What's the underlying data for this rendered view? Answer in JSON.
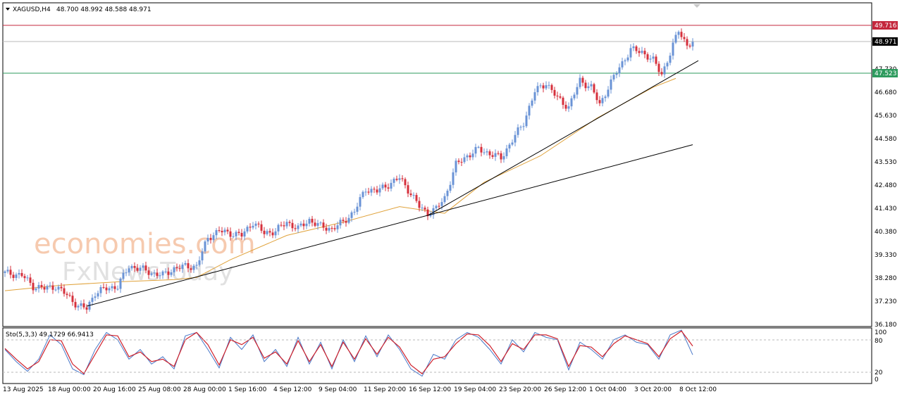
{
  "header": {
    "symbol": "XAGUSD,H4",
    "ohlc": "48.700 48.992 48.588 48.971",
    "collapse_icon": "triangle-down-icon"
  },
  "watermark": {
    "line1": "economies.com",
    "line2": "FxNewsToday"
  },
  "price_axis": {
    "ticks": [
      "49.716",
      "48.971",
      "47.730",
      "47.523",
      "46.680",
      "45.630",
      "44.580",
      "43.530",
      "42.480",
      "41.430",
      "40.380",
      "39.330",
      "38.280",
      "37.230",
      "36.180"
    ]
  },
  "levels": {
    "resistance": {
      "label": "49.716",
      "value": 49.716,
      "color": "#c4273c"
    },
    "current": {
      "label": "48.971",
      "value": 48.971,
      "color": "#000000"
    },
    "support": {
      "label": "47.523",
      "value": 47.523,
      "color": "#2e9b5e"
    }
  },
  "time_axis": {
    "labels": [
      "13 Aug 2025",
      "18 Aug 00:00",
      "20 Aug 16:00",
      "25 Aug 08:00",
      "28 Aug 00:00",
      "1 Sep 16:00",
      "4 Sep 12:00",
      "9 Sep 04:00",
      "11 Sep 20:00",
      "16 Sep 12:00",
      "19 Sep 04:00",
      "23 Sep 20:00",
      "26 Sep 12:00",
      "1 Oct 04:00",
      "3 Oct 20:00",
      "8 Oct 12:00"
    ]
  },
  "stochastic": {
    "label": "Sto(5,3,3) 49.1729 66.9413",
    "levels": [
      "100",
      "80",
      "20",
      "0"
    ],
    "main_color": "#4a78c8",
    "signal_color": "#d0222c"
  },
  "chart_data": {
    "type": "candlestick",
    "symbol": "XAGUSD",
    "timeframe": "H4",
    "ylim": [
      36.18,
      50.24
    ],
    "bull_color": "#6a93d6",
    "bear_color": "#d6303c",
    "ma_color": "#e0a23a",
    "close_path": [
      [
        0,
        38.6
      ],
      [
        6,
        38.5
      ],
      [
        10,
        38.0
      ],
      [
        14,
        37.9
      ],
      [
        18,
        38.0
      ],
      [
        22,
        37.6
      ],
      [
        26,
        37.1
      ],
      [
        29,
        37.0
      ],
      [
        32,
        37.7
      ],
      [
        36,
        37.9
      ],
      [
        40,
        38.0
      ],
      [
        44,
        38.9
      ],
      [
        48,
        38.8
      ],
      [
        52,
        38.6
      ],
      [
        56,
        38.5
      ],
      [
        60,
        38.8
      ],
      [
        64,
        38.9
      ],
      [
        68,
        38.9
      ],
      [
        72,
        40.2
      ],
      [
        76,
        40.5
      ],
      [
        80,
        40.4
      ],
      [
        84,
        40.3
      ],
      [
        88,
        40.9
      ],
      [
        92,
        40.4
      ],
      [
        96,
        40.5
      ],
      [
        100,
        40.9
      ],
      [
        104,
        40.6
      ],
      [
        108,
        41.0
      ],
      [
        112,
        40.7
      ],
      [
        116,
        40.6
      ],
      [
        120,
        40.9
      ],
      [
        124,
        41.4
      ],
      [
        128,
        42.4
      ],
      [
        132,
        42.3
      ],
      [
        136,
        42.6
      ],
      [
        140,
        42.9
      ],
      [
        144,
        42.2
      ],
      [
        147,
        41.6
      ],
      [
        150,
        41.3
      ],
      [
        153,
        41.5
      ],
      [
        156,
        42.0
      ],
      [
        160,
        43.5
      ],
      [
        164,
        43.9
      ],
      [
        168,
        44.2
      ],
      [
        172,
        44.0
      ],
      [
        176,
        43.8
      ],
      [
        180,
        44.6
      ],
      [
        184,
        45.4
      ],
      [
        188,
        46.8
      ],
      [
        192,
        47.2
      ],
      [
        196,
        46.5
      ],
      [
        200,
        46.1
      ],
      [
        204,
        47.3
      ],
      [
        208,
        47.0
      ],
      [
        211,
        46.2
      ],
      [
        214,
        47.0
      ],
      [
        218,
        47.9
      ],
      [
        222,
        48.7
      ],
      [
        226,
        48.6
      ],
      [
        230,
        48.2
      ],
      [
        233,
        47.6
      ],
      [
        236,
        48.5
      ],
      [
        239,
        49.6
      ],
      [
        242,
        48.9
      ],
      [
        244,
        48.97
      ]
    ],
    "moving_average_path": [
      [
        0,
        37.8
      ],
      [
        20,
        38.05
      ],
      [
        40,
        38.2
      ],
      [
        60,
        38.3
      ],
      [
        68,
        38.4
      ],
      [
        80,
        39.2
      ],
      [
        100,
        40.3
      ],
      [
        120,
        40.9
      ],
      [
        140,
        41.6
      ],
      [
        156,
        41.3
      ],
      [
        170,
        42.7
      ],
      [
        190,
        43.9
      ],
      [
        210,
        45.6
      ],
      [
        230,
        47.0
      ],
      [
        238,
        47.4
      ]
    ],
    "trendlines": [
      {
        "from": [
          29,
          37.1
        ],
        "to": [
          244,
          44.4
        ]
      },
      {
        "from": [
          150,
          41.2
        ],
        "to": [
          246,
          48.2
        ]
      }
    ],
    "stochastic_main": [
      [
        0,
        60
      ],
      [
        4,
        35
      ],
      [
        8,
        15
      ],
      [
        12,
        40
      ],
      [
        16,
        90
      ],
      [
        20,
        70
      ],
      [
        24,
        20
      ],
      [
        28,
        8
      ],
      [
        32,
        60
      ],
      [
        36,
        95
      ],
      [
        40,
        80
      ],
      [
        44,
        40
      ],
      [
        48,
        60
      ],
      [
        52,
        30
      ],
      [
        56,
        45
      ],
      [
        60,
        20
      ],
      [
        64,
        88
      ],
      [
        68,
        95
      ],
      [
        72,
        60
      ],
      [
        76,
        22
      ],
      [
        80,
        85
      ],
      [
        84,
        60
      ],
      [
        88,
        90
      ],
      [
        92,
        35
      ],
      [
        96,
        60
      ],
      [
        100,
        25
      ],
      [
        104,
        85
      ],
      [
        108,
        30
      ],
      [
        112,
        75
      ],
      [
        116,
        20
      ],
      [
        120,
        80
      ],
      [
        124,
        35
      ],
      [
        128,
        88
      ],
      [
        132,
        45
      ],
      [
        136,
        90
      ],
      [
        140,
        60
      ],
      [
        144,
        20
      ],
      [
        148,
        5
      ],
      [
        152,
        50
      ],
      [
        156,
        40
      ],
      [
        160,
        80
      ],
      [
        164,
        95
      ],
      [
        168,
        85
      ],
      [
        172,
        60
      ],
      [
        176,
        30
      ],
      [
        180,
        80
      ],
      [
        184,
        55
      ],
      [
        188,
        95
      ],
      [
        192,
        85
      ],
      [
        196,
        80
      ],
      [
        200,
        18
      ],
      [
        204,
        75
      ],
      [
        208,
        60
      ],
      [
        212,
        40
      ],
      [
        216,
        80
      ],
      [
        220,
        90
      ],
      [
        224,
        75
      ],
      [
        228,
        70
      ],
      [
        232,
        40
      ],
      [
        236,
        90
      ],
      [
        240,
        100
      ],
      [
        244,
        49
      ]
    ],
    "stochastic_signal": [
      [
        0,
        62
      ],
      [
        4,
        40
      ],
      [
        8,
        20
      ],
      [
        12,
        35
      ],
      [
        16,
        80
      ],
      [
        20,
        78
      ],
      [
        24,
        30
      ],
      [
        28,
        10
      ],
      [
        32,
        50
      ],
      [
        36,
        90
      ],
      [
        40,
        88
      ],
      [
        44,
        45
      ],
      [
        48,
        55
      ],
      [
        52,
        35
      ],
      [
        56,
        40
      ],
      [
        60,
        25
      ],
      [
        64,
        80
      ],
      [
        68,
        95
      ],
      [
        72,
        70
      ],
      [
        76,
        28
      ],
      [
        80,
        80
      ],
      [
        84,
        70
      ],
      [
        88,
        85
      ],
      [
        92,
        42
      ],
      [
        96,
        55
      ],
      [
        100,
        30
      ],
      [
        104,
        78
      ],
      [
        108,
        35
      ],
      [
        112,
        70
      ],
      [
        116,
        25
      ],
      [
        120,
        75
      ],
      [
        124,
        40
      ],
      [
        128,
        82
      ],
      [
        132,
        50
      ],
      [
        136,
        85
      ],
      [
        140,
        65
      ],
      [
        144,
        28
      ],
      [
        148,
        10
      ],
      [
        152,
        40
      ],
      [
        156,
        45
      ],
      [
        160,
        72
      ],
      [
        164,
        92
      ],
      [
        168,
        90
      ],
      [
        172,
        68
      ],
      [
        176,
        35
      ],
      [
        180,
        72
      ],
      [
        184,
        60
      ],
      [
        188,
        90
      ],
      [
        192,
        90
      ],
      [
        196,
        82
      ],
      [
        200,
        25
      ],
      [
        204,
        68
      ],
      [
        208,
        65
      ],
      [
        212,
        45
      ],
      [
        216,
        72
      ],
      [
        220,
        88
      ],
      [
        224,
        80
      ],
      [
        228,
        72
      ],
      [
        232,
        45
      ],
      [
        236,
        82
      ],
      [
        240,
        98
      ],
      [
        244,
        67
      ]
    ]
  }
}
